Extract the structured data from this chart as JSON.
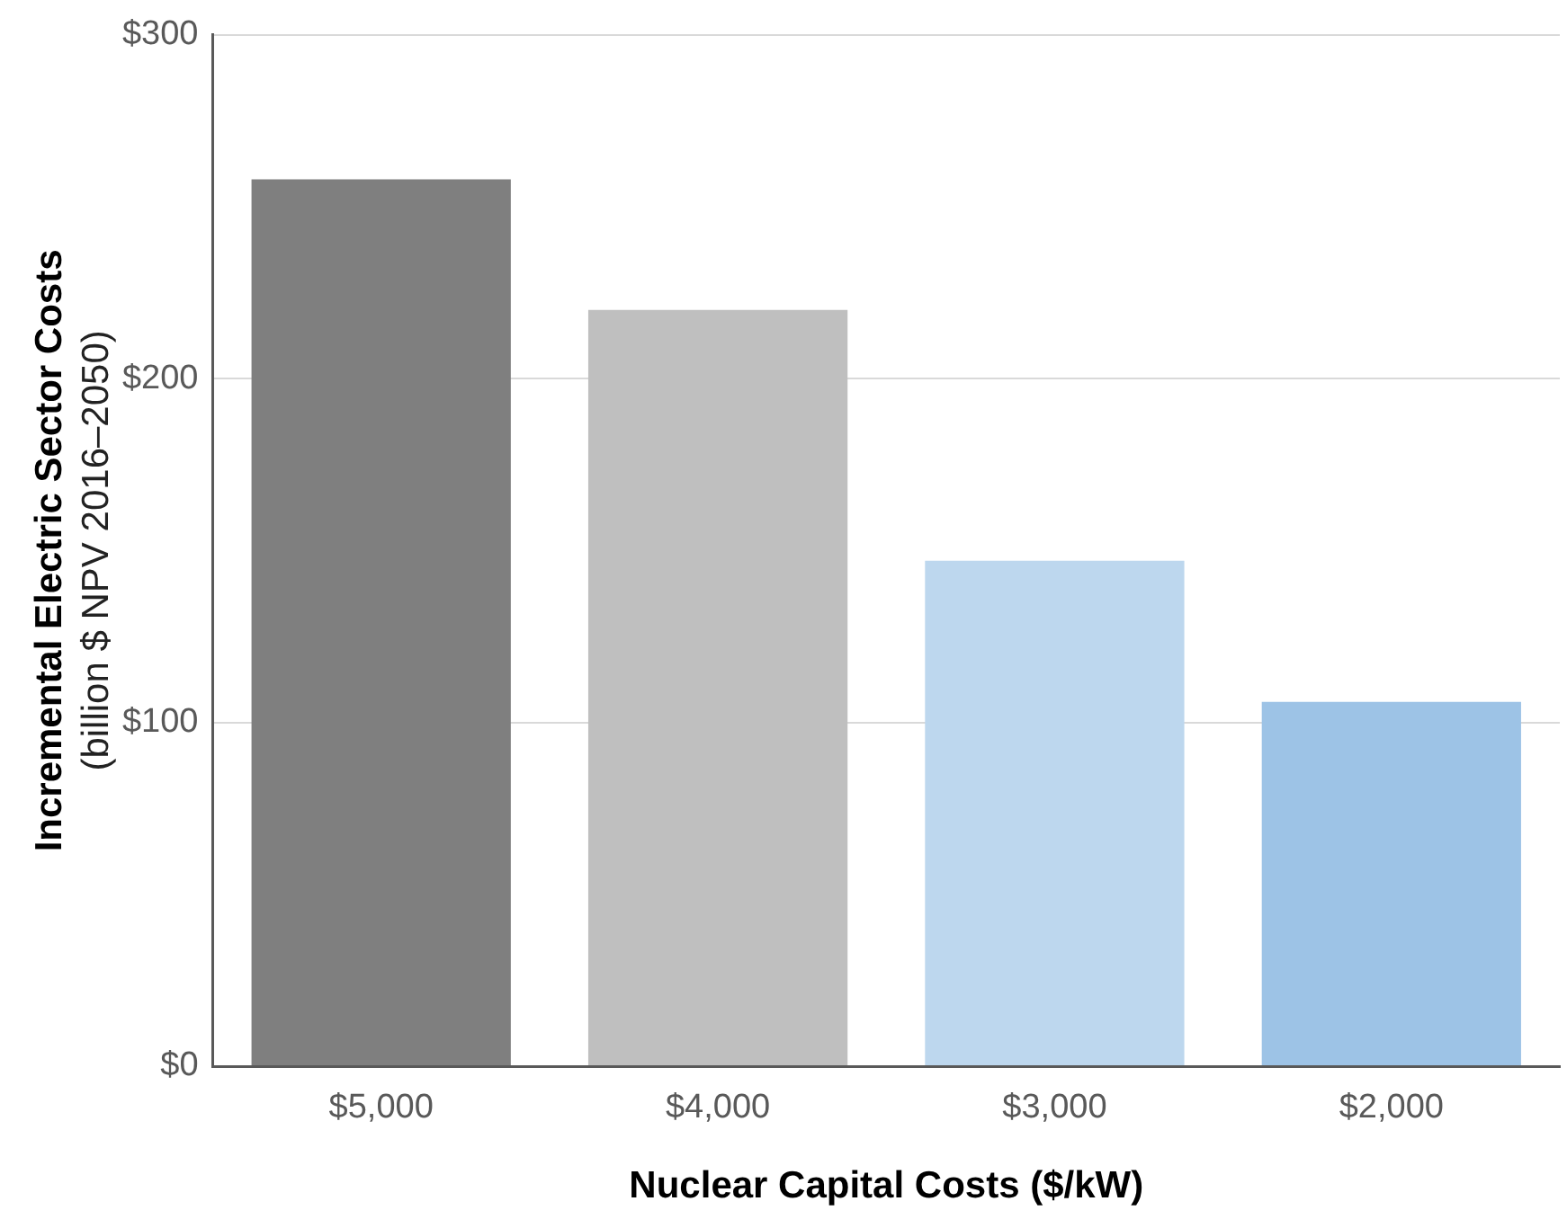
{
  "chart_data": {
    "type": "bar",
    "xlabel": "Nuclear Capital Costs ($/kW)",
    "ylabel": "Incremental Electric Sector Costs\n(billion $ NPV 2016–2050)",
    "categories": [
      "$5,000",
      "$4,000",
      "$3,000",
      "$2,000"
    ],
    "values": [
      258,
      220,
      147,
      106
    ],
    "colors": [
      "#7f7f7f",
      "#bfbfbf",
      "#bdd7ee",
      "#9dc3e6"
    ],
    "ylim": [
      0,
      300
    ],
    "yticks": [
      {
        "value": 0,
        "label": "$0"
      },
      {
        "value": 100,
        "label": "$100"
      },
      {
        "value": 200,
        "label": "$200"
      },
      {
        "value": 300,
        "label": "$300"
      }
    ],
    "grid": "y",
    "legend": false
  }
}
